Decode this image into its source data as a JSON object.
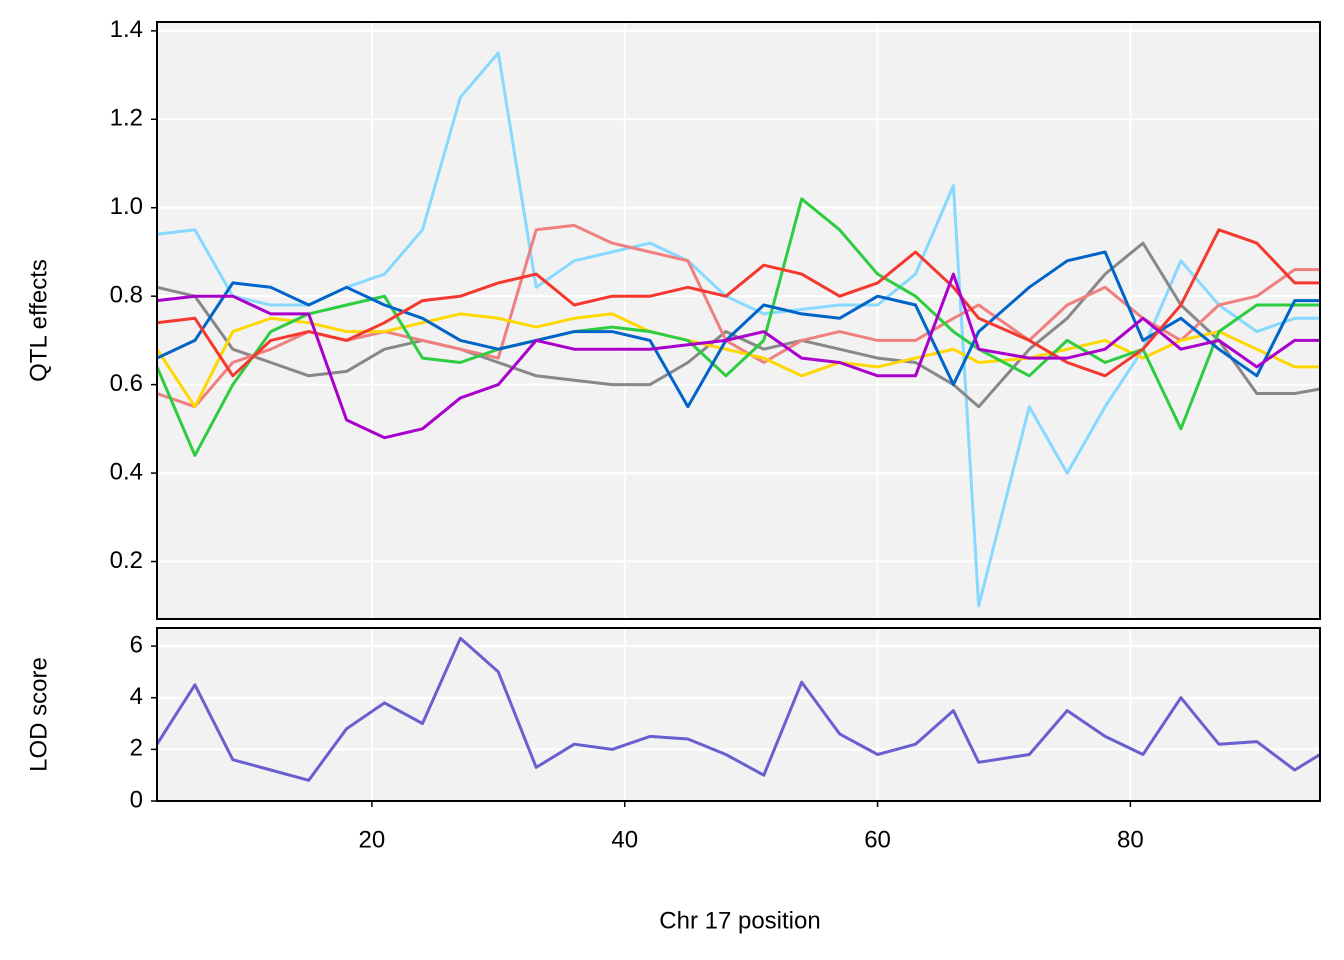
{
  "chart_data": [
    {
      "type": "line",
      "ylabel": "QTL effects",
      "x": [
        3,
        6,
        9,
        12,
        15,
        18,
        21,
        24,
        27,
        30,
        33,
        36,
        39,
        42,
        45,
        48,
        51,
        54,
        57,
        60,
        63,
        66,
        68,
        72,
        75,
        78,
        81,
        84,
        87,
        90,
        93,
        95
      ],
      "xlim": [
        3,
        95
      ],
      "xticks": [
        20,
        40,
        60,
        80
      ],
      "ylim": [
        0.07,
        1.42
      ],
      "yticks": [
        0.2,
        0.4,
        0.6,
        0.8,
        {
          "value": 1,
          "label": "1.0"
        },
        1.2,
        1.4
      ],
      "grid": true,
      "series": [
        {
          "color": "#87d9ff",
          "values": [
            0.94,
            0.95,
            0.8,
            0.78,
            0.78,
            0.82,
            0.85,
            0.95,
            1.25,
            1.35,
            0.82,
            0.88,
            0.9,
            0.92,
            0.88,
            0.8,
            0.76,
            0.77,
            0.78,
            0.78,
            0.85,
            1.05,
            0.1,
            0.55,
            0.4,
            0.55,
            0.68,
            0.88,
            0.78,
            0.72,
            0.75,
            0.75
          ]
        },
        {
          "color": "#888888",
          "values": [
            0.82,
            0.8,
            0.68,
            0.65,
            0.62,
            0.63,
            0.68,
            0.7,
            0.68,
            0.65,
            0.62,
            0.61,
            0.6,
            0.6,
            0.65,
            0.72,
            0.68,
            0.7,
            0.68,
            0.66,
            0.65,
            0.6,
            0.55,
            0.68,
            0.75,
            0.85,
            0.92,
            0.78,
            0.7,
            0.58,
            0.58,
            0.59
          ]
        },
        {
          "color": "#f08080",
          "values": [
            0.58,
            0.55,
            0.65,
            0.68,
            0.72,
            0.7,
            0.72,
            0.7,
            0.68,
            0.66,
            0.95,
            0.96,
            0.92,
            0.9,
            0.88,
            0.7,
            0.65,
            0.7,
            0.72,
            0.7,
            0.7,
            0.75,
            0.78,
            0.7,
            0.78,
            0.82,
            0.75,
            0.7,
            0.78,
            0.8,
            0.86,
            0.86
          ]
        },
        {
          "color": "#ffd700",
          "values": [
            0.68,
            0.55,
            0.72,
            0.75,
            0.74,
            0.72,
            0.72,
            0.74,
            0.76,
            0.75,
            0.73,
            0.75,
            0.76,
            0.72,
            0.7,
            0.68,
            0.66,
            0.62,
            0.65,
            0.64,
            0.66,
            0.68,
            0.65,
            0.66,
            0.68,
            0.7,
            0.66,
            0.7,
            0.72,
            0.68,
            0.64,
            0.64
          ]
        },
        {
          "color": "#2ecc40",
          "values": [
            0.64,
            0.44,
            0.6,
            0.72,
            0.76,
            0.78,
            0.8,
            0.66,
            0.65,
            0.68,
            0.7,
            0.72,
            0.73,
            0.72,
            0.7,
            0.62,
            0.7,
            1.02,
            0.95,
            0.85,
            0.8,
            0.72,
            0.68,
            0.62,
            0.7,
            0.65,
            0.68,
            0.5,
            0.72,
            0.78,
            0.78,
            0.78
          ]
        },
        {
          "color": "#0064c8",
          "values": [
            0.66,
            0.7,
            0.83,
            0.82,
            0.78,
            0.82,
            0.78,
            0.75,
            0.7,
            0.68,
            0.7,
            0.72,
            0.72,
            0.7,
            0.55,
            0.7,
            0.78,
            0.76,
            0.75,
            0.8,
            0.78,
            0.6,
            0.72,
            0.82,
            0.88,
            0.9,
            0.7,
            0.75,
            0.68,
            0.62,
            0.79,
            0.79
          ]
        },
        {
          "color": "#f4382e",
          "values": [
            0.74,
            0.75,
            0.62,
            0.7,
            0.72,
            0.7,
            0.74,
            0.79,
            0.8,
            0.83,
            0.85,
            0.78,
            0.8,
            0.8,
            0.82,
            0.8,
            0.87,
            0.85,
            0.8,
            0.83,
            0.9,
            0.82,
            0.75,
            0.7,
            0.65,
            0.62,
            0.68,
            0.78,
            0.95,
            0.92,
            0.83,
            0.83
          ]
        },
        {
          "color": "#aa00cc",
          "values": [
            0.79,
            0.8,
            0.8,
            0.76,
            0.76,
            0.52,
            0.48,
            0.5,
            0.57,
            0.6,
            0.7,
            0.68,
            0.68,
            0.68,
            0.69,
            0.7,
            0.72,
            0.66,
            0.65,
            0.62,
            0.62,
            0.85,
            0.68,
            0.66,
            0.66,
            0.68,
            0.75,
            0.68,
            0.7,
            0.64,
            0.7,
            0.7
          ]
        }
      ]
    },
    {
      "type": "line",
      "ylabel": "LOD score",
      "xlabel": "Chr 17 position",
      "x": [
        3,
        6,
        9,
        12,
        15,
        18,
        21,
        24,
        27,
        30,
        33,
        36,
        39,
        42,
        45,
        48,
        51,
        54,
        57,
        60,
        63,
        66,
        68,
        72,
        75,
        78,
        81,
        84,
        87,
        90,
        93,
        95
      ],
      "xlim": [
        3,
        95
      ],
      "xticks": [
        20,
        40,
        60,
        80
      ],
      "ylim": [
        0,
        6.7
      ],
      "yticks": [
        0,
        2,
        4,
        6
      ],
      "grid": true,
      "series": [
        {
          "color": "#6a5fcf",
          "values": [
            2.2,
            4.5,
            1.6,
            1.2,
            0.8,
            2.8,
            3.8,
            3.0,
            6.3,
            5.0,
            1.3,
            2.2,
            2.0,
            2.5,
            2.4,
            1.8,
            1.0,
            4.6,
            2.6,
            1.8,
            2.2,
            3.5,
            1.5,
            1.8,
            3.5,
            2.5,
            1.8,
            4.0,
            2.2,
            2.3,
            1.2,
            1.8
          ]
        }
      ]
    }
  ]
}
